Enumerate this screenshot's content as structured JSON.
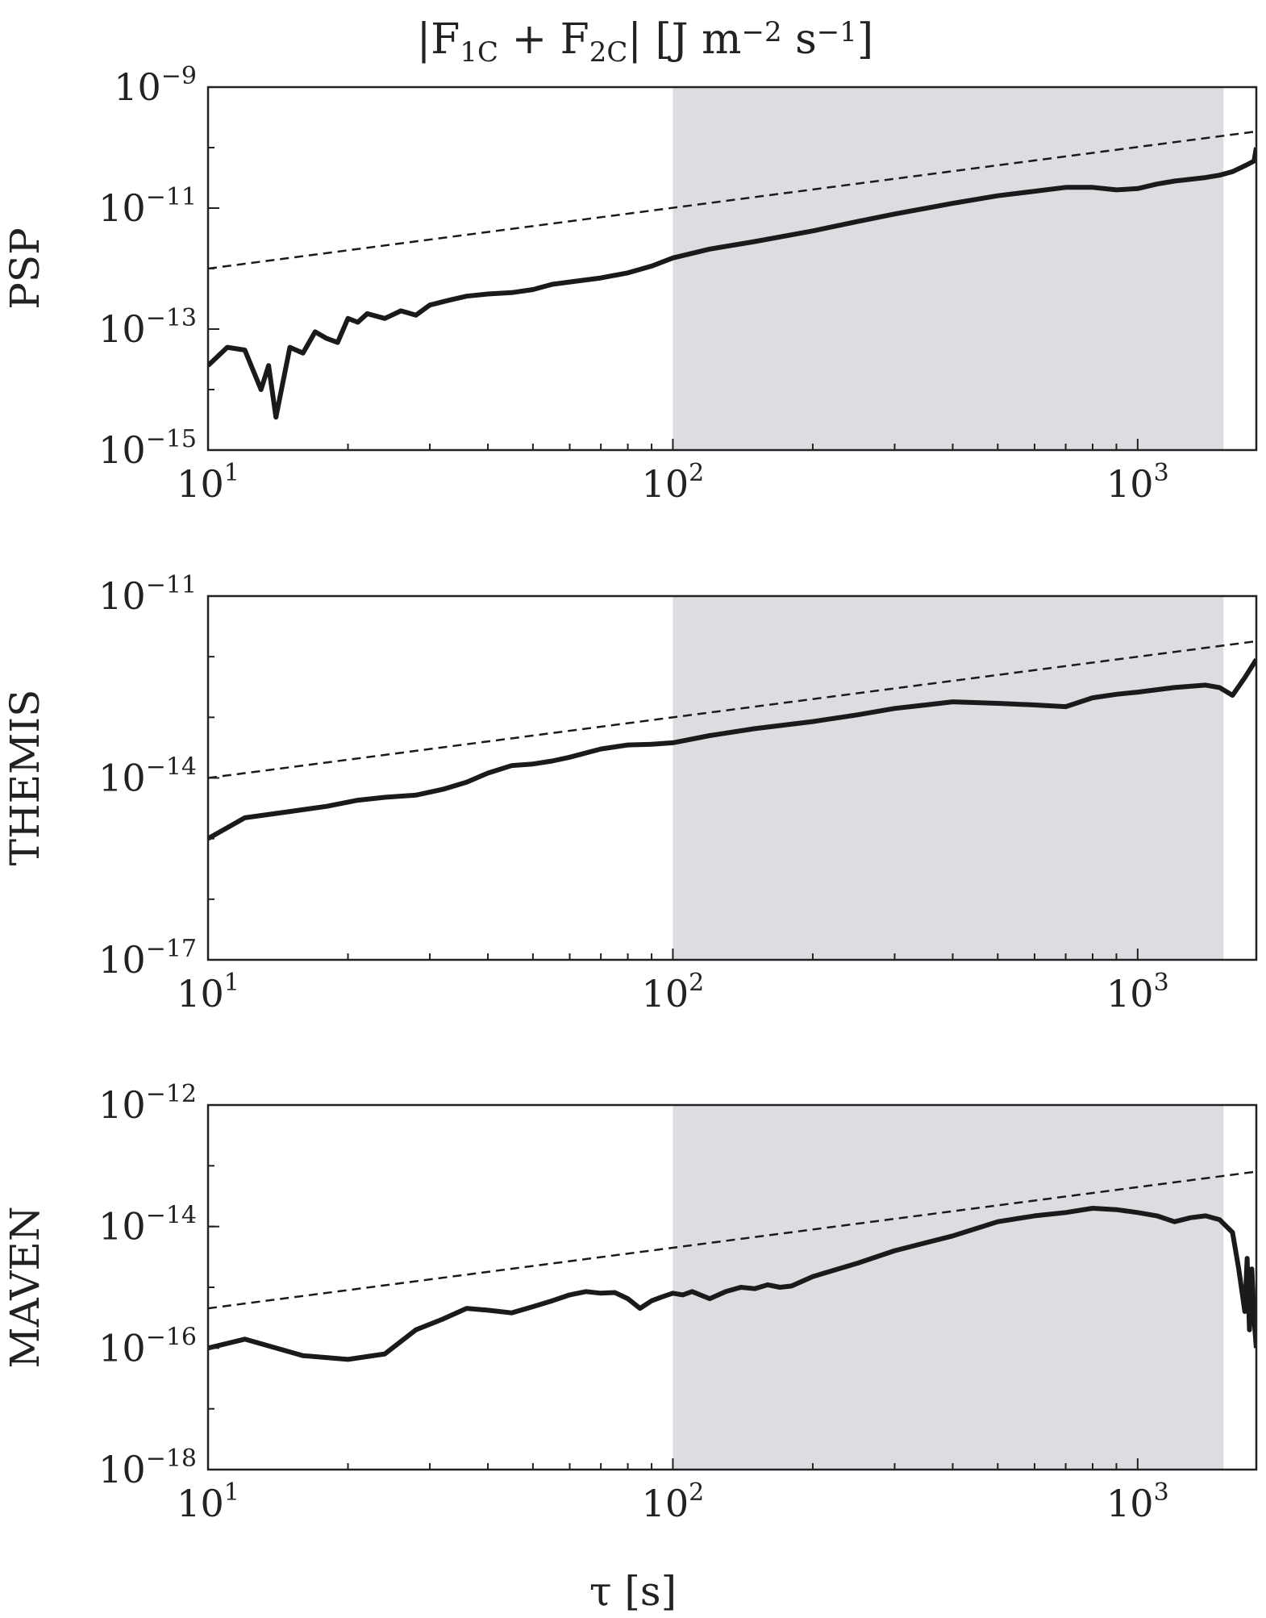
{
  "figure": {
    "title": "|F1C + F2C| [J m−2 s−1]",
    "xlabel": "τ [s]"
  },
  "chart_data": [
    {
      "type": "line",
      "ylabel": "PSP",
      "x_scale": "log",
      "y_scale": "log",
      "xlim": [
        10,
        1800
      ],
      "ylim": [
        1e-15,
        1e-09
      ],
      "x_ticks": [
        {
          "base": "10",
          "exp": "1"
        },
        {
          "base": "10",
          "exp": "2"
        },
        {
          "base": "10",
          "exp": "3"
        }
      ],
      "y_ticks": [
        {
          "base": "10",
          "exp": "−15"
        },
        {
          "base": "10",
          "exp": "−13"
        },
        {
          "base": "10",
          "exp": "−11"
        },
        {
          "base": "10",
          "exp": "−9"
        }
      ],
      "shaded_region": {
        "x": [
          100,
          1530
        ],
        "color": "#dcdde0"
      },
      "grid": false,
      "series": [
        {
          "style": "solid",
          "color": "#1a1a1a",
          "x": [
            10,
            11,
            12,
            13,
            13.5,
            14,
            15,
            16,
            17,
            18,
            19,
            20,
            21,
            22,
            24,
            26,
            28,
            30,
            33,
            36,
            40,
            45,
            50,
            55,
            60,
            70,
            80,
            90,
            100,
            120,
            150,
            200,
            250,
            300,
            400,
            500,
            600,
            700,
            800,
            900,
            1000,
            1100,
            1200,
            1400,
            1500,
            1600,
            1700,
            1780,
            1800
          ],
          "y": [
            2.5e-14,
            5e-14,
            4.5e-14,
            1e-14,
            2.5e-14,
            3.5e-15,
            5e-14,
            4e-14,
            9e-14,
            7e-14,
            6e-14,
            1.5e-13,
            1.3e-13,
            1.8e-13,
            1.5e-13,
            2e-13,
            1.7e-13,
            2.5e-13,
            3e-13,
            3.5e-13,
            3.8e-13,
            4e-13,
            4.5e-13,
            5.5e-13,
            6e-13,
            7e-13,
            8.5e-13,
            1.1e-12,
            1.5e-12,
            2.1e-12,
            2.8e-12,
            4.2e-12,
            6e-12,
            8e-12,
            1.2e-11,
            1.6e-11,
            1.9e-11,
            2.2e-11,
            2.2e-11,
            2e-11,
            2.1e-11,
            2.5e-11,
            2.8e-11,
            3.2e-11,
            3.5e-11,
            4e-11,
            5e-11,
            6e-11,
            1e-10
          ]
        },
        {
          "style": "dashed",
          "color": "#1a1a1a",
          "x": [
            10,
            1800
          ],
          "y": [
            1e-12,
            1.85e-10
          ]
        }
      ]
    },
    {
      "type": "line",
      "ylabel": "THEMIS",
      "x_scale": "log",
      "y_scale": "log",
      "xlim": [
        10,
        1800
      ],
      "ylim": [
        1e-17,
        1e-11
      ],
      "x_ticks": [
        {
          "base": "10",
          "exp": "1"
        },
        {
          "base": "10",
          "exp": "2"
        },
        {
          "base": "10",
          "exp": "3"
        }
      ],
      "y_ticks": [
        {
          "base": "10",
          "exp": "−17"
        },
        {
          "base": "10",
          "exp": "−14"
        },
        {
          "base": "10",
          "exp": "−11"
        }
      ],
      "shaded_region": {
        "x": [
          100,
          1530
        ],
        "color": "#dcdde0"
      },
      "grid": false,
      "series": [
        {
          "style": "solid",
          "color": "#1a1a1a",
          "x": [
            10,
            12,
            15,
            18,
            21,
            24,
            28,
            32,
            36,
            40,
            45,
            50,
            55,
            60,
            70,
            80,
            90,
            100,
            120,
            150,
            200,
            250,
            300,
            350,
            400,
            500,
            600,
            700,
            800,
            900,
            1000,
            1200,
            1400,
            1500,
            1600,
            1700,
            1800
          ],
          "y": [
            1e-15,
            2.2e-15,
            2.8e-15,
            3.4e-15,
            4.3e-15,
            4.8e-15,
            5.2e-15,
            6.5e-15,
            8.5e-15,
            1.2e-14,
            1.6e-14,
            1.7e-14,
            1.9e-14,
            2.2e-14,
            3e-14,
            3.5e-14,
            3.6e-14,
            3.8e-14,
            5e-14,
            6.5e-14,
            8.5e-14,
            1.1e-13,
            1.4e-13,
            1.6e-13,
            1.8e-13,
            1.7e-13,
            1.6e-13,
            1.5e-13,
            2.1e-13,
            2.4e-13,
            2.6e-13,
            3.1e-13,
            3.4e-13,
            3.1e-13,
            2.3e-13,
            4.5e-13,
            9e-13
          ]
        },
        {
          "style": "dashed",
          "color": "#1a1a1a",
          "x": [
            10,
            1800
          ],
          "y": [
            1e-14,
            1.8e-12
          ]
        }
      ]
    },
    {
      "type": "line",
      "ylabel": "MAVEN",
      "x_scale": "log",
      "y_scale": "log",
      "xlim": [
        10,
        1800
      ],
      "ylim": [
        1e-18,
        1e-12
      ],
      "x_ticks": [
        {
          "base": "10",
          "exp": "1"
        },
        {
          "base": "10",
          "exp": "2"
        },
        {
          "base": "10",
          "exp": "3"
        }
      ],
      "y_ticks": [
        {
          "base": "10",
          "exp": "−18"
        },
        {
          "base": "10",
          "exp": "−16"
        },
        {
          "base": "10",
          "exp": "−14"
        },
        {
          "base": "10",
          "exp": "−12"
        }
      ],
      "shaded_region": {
        "x": [
          100,
          1530
        ],
        "color": "#dcdde0"
      },
      "grid": false,
      "series": [
        {
          "style": "solid",
          "color": "#1a1a1a",
          "x": [
            10,
            12,
            16,
            20,
            24,
            28,
            32,
            36,
            40,
            45,
            50,
            55,
            60,
            65,
            70,
            75,
            80,
            85,
            90,
            95,
            100,
            105,
            110,
            120,
            130,
            140,
            150,
            160,
            170,
            180,
            200,
            250,
            300,
            400,
            500,
            600,
            700,
            800,
            900,
            1000,
            1100,
            1200,
            1300,
            1400,
            1500,
            1600,
            1650,
            1700,
            1720,
            1740,
            1760,
            1780,
            1800
          ],
          "y": [
            1e-16,
            1.4e-16,
            7.5e-17,
            6.5e-17,
            8e-17,
            2e-16,
            3e-16,
            4.5e-16,
            4.2e-16,
            3.8e-16,
            4.8e-16,
            6e-16,
            7.5e-16,
            8.5e-16,
            8e-16,
            8.2e-16,
            6.5e-16,
            4.5e-16,
            6e-16,
            7e-16,
            8e-16,
            7.5e-16,
            8.5e-16,
            6.5e-16,
            8.5e-16,
            1e-15,
            9.5e-16,
            1.1e-15,
            1e-15,
            1.05e-15,
            1.5e-15,
            2.5e-15,
            4e-15,
            7e-15,
            1.2e-14,
            1.5e-14,
            1.7e-14,
            2e-14,
            1.9e-14,
            1.7e-14,
            1.5e-14,
            1.2e-14,
            1.4e-14,
            1.5e-14,
            1.3e-14,
            8e-15,
            2e-15,
            4e-16,
            3e-15,
            2e-16,
            2e-15,
            3e-16,
            1e-16
          ]
        },
        {
          "style": "dashed",
          "color": "#1a1a1a",
          "x": [
            10,
            1800
          ],
          "y": [
            4.5e-16,
            8e-14
          ]
        }
      ]
    }
  ]
}
